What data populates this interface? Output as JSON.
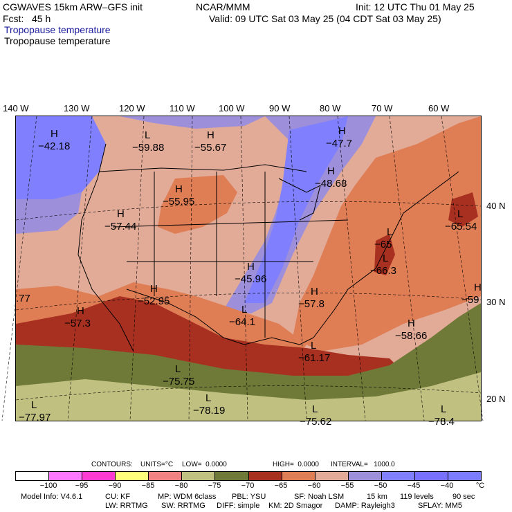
{
  "header": {
    "model_title": "CGWAVES 15km ARW–GFS init",
    "forecast": "Fcst:   45 h",
    "org": "NCAR/MMM",
    "init": "Init: 12 UTC Thu 01 May 25",
    "valid": "Valid: 09 UTC Sat 03 May 25 (04 CDT Sat 03 May 25)",
    "field_title": "Tropopause temperature",
    "field_subtitle": "Tropopause temperature"
  },
  "longitudes": [
    "140 W",
    "130 W",
    "120 W",
    "110 W",
    "100 W",
    "90 W",
    "80 W",
    "70 W",
    "60 W"
  ],
  "latitudes": [
    "40 N",
    "30 N",
    "20 N"
  ],
  "map_labels": [
    {
      "type": "H",
      "value": "−42.18"
    },
    {
      "type": "L",
      "value": "−59.88"
    },
    {
      "type": "H",
      "value": "−55.67"
    },
    {
      "type": "H",
      "value": "−47.7"
    },
    {
      "type": "H",
      "value": "−48.68"
    },
    {
      "type": "H",
      "value": "−55.95"
    },
    {
      "type": "H",
      "value": "−57.44"
    },
    {
      "type": "L",
      "value": "−65.54"
    },
    {
      "type": "L",
      "value": "−65"
    },
    {
      "type": "L",
      "value": "−66.3"
    },
    {
      "type": "",
      "value": ".77"
    },
    {
      "type": "H",
      "value": "−52.95"
    },
    {
      "type": "H",
      "value": "−45.96"
    },
    {
      "type": "H",
      "value": "−57.8"
    },
    {
      "type": "H",
      "value": "−59"
    },
    {
      "type": "H",
      "value": "−57.3"
    },
    {
      "type": "L",
      "value": "−64.1"
    },
    {
      "type": "H",
      "value": "−58.66"
    },
    {
      "type": "L",
      "value": "−61.17"
    },
    {
      "type": "L",
      "value": "−75.75"
    },
    {
      "type": "L",
      "value": "−78.19"
    },
    {
      "type": "L",
      "value": "−77.97"
    },
    {
      "type": "L",
      "value": "−75.62"
    },
    {
      "type": "L",
      "value": "−78.4"
    }
  ],
  "contours": {
    "label": "CONTOURS:",
    "units": "UNITS=°C",
    "low": "LOW=  0.0000",
    "high": "HIGH=  0.0000",
    "interval": "INTERVAL=   1000.0"
  },
  "colorbar": {
    "colors": [
      "#ffffff",
      "#ff78ff",
      "#ff3cd2",
      "#ffff7c",
      "#f08282",
      "#c0c080",
      "#707a38",
      "#a83020",
      "#df7d55",
      "#e2ab98",
      "#9d8fd9",
      "#8080ff",
      "#7870ff",
      "#7c7cff"
    ],
    "ticks": [
      "−100",
      "−95",
      "−90",
      "−85",
      "−80",
      "−75",
      "−70",
      "−65",
      "−60",
      "−55",
      "−50",
      "−45",
      "−40",
      "°C"
    ]
  },
  "footer": {
    "model_info": "Model Info: V4.6.1",
    "cu": "CU: KF",
    "mp": "MP: WDM 6class",
    "pbl": "PBL: YSU",
    "sf": "SF: Noah LSM",
    "res": "15 km",
    "levels": "119 levels",
    "dt": "90 sec",
    "lw": "LW: RRTMG",
    "sw": "SW: RRTMG",
    "diff": "DIFF: simple",
    "km": "KM: 2D Smagor",
    "damp": "DAMP: Rayleigh3",
    "sflay": "SFLAY: MM5"
  }
}
